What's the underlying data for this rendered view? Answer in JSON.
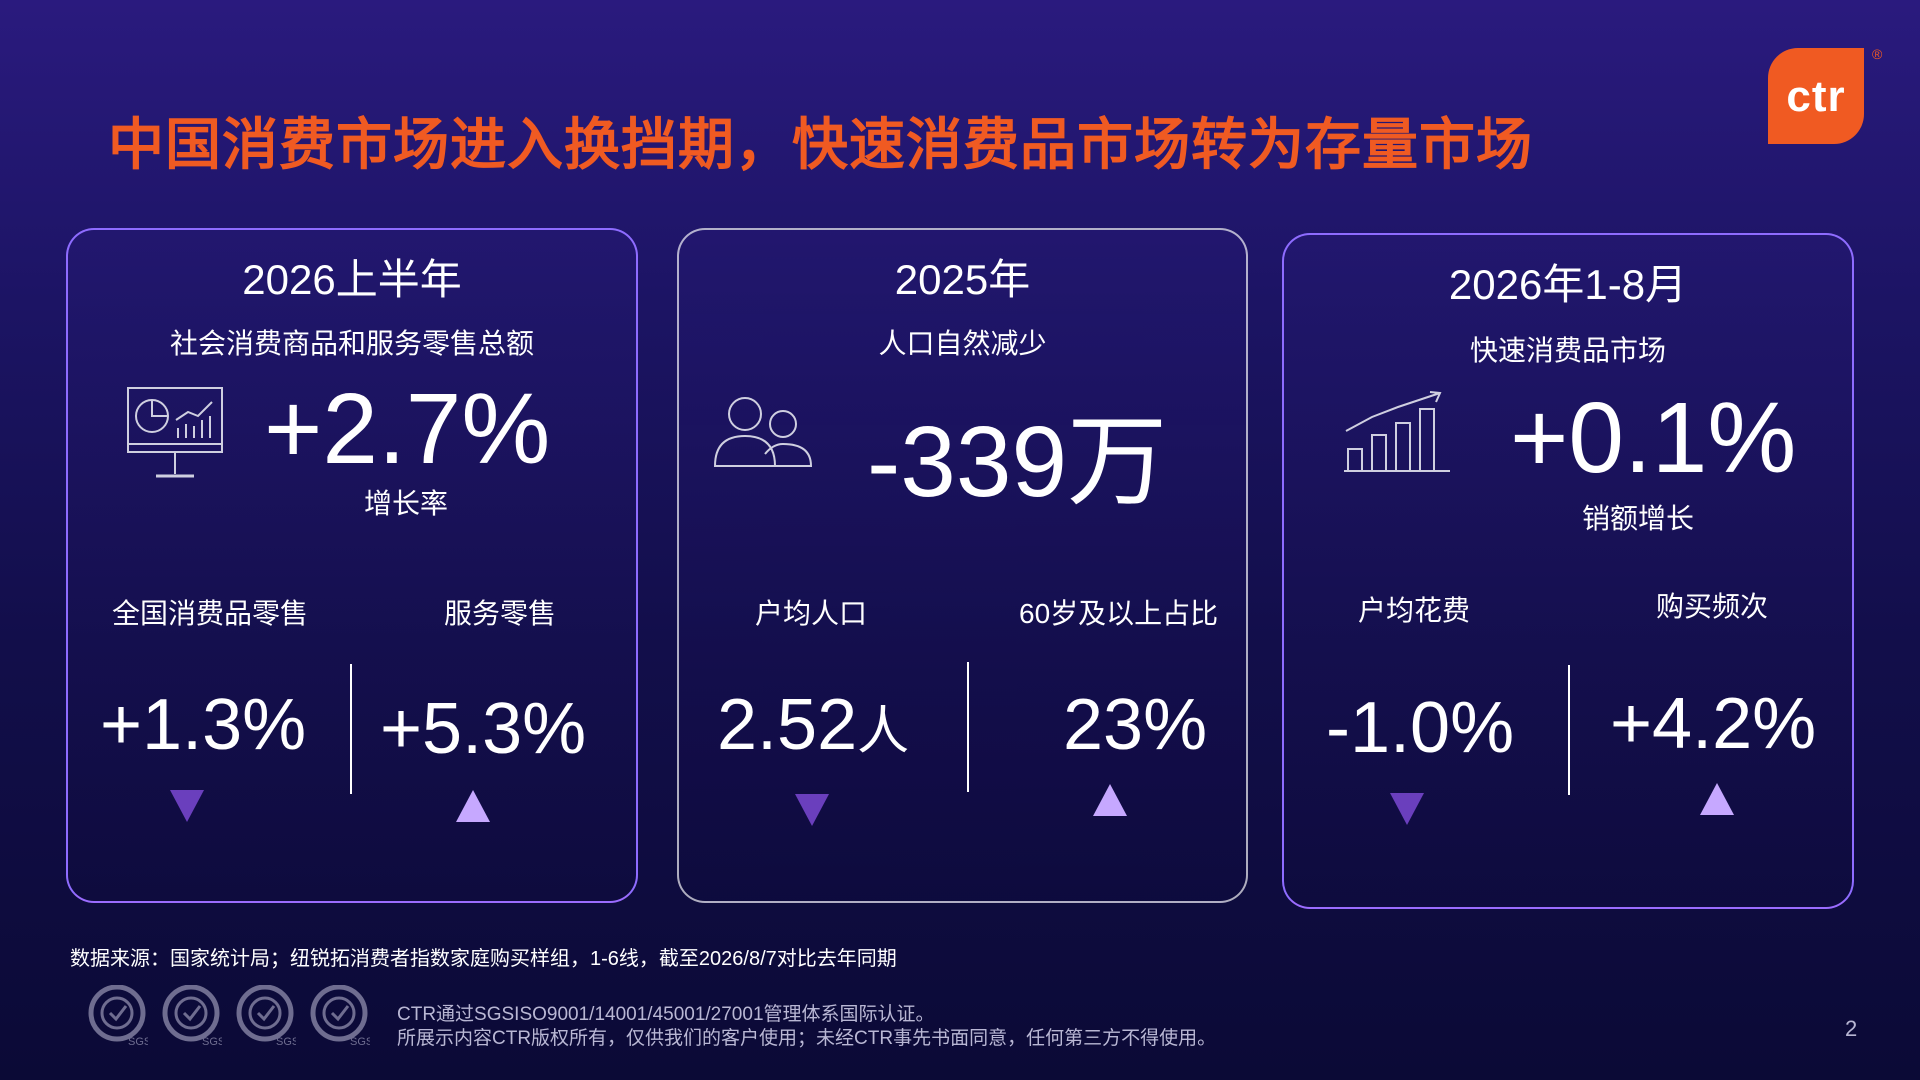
{
  "title": "中国消费市场进入换挡期，快速消费品市场转为存量市场",
  "logo": {
    "text": "ctr",
    "reg": "®"
  },
  "colors": {
    "accent": "#f05a22",
    "down_arrow": "#6a3fbd",
    "up_arrow": "#c6a8ff"
  },
  "cards": [
    {
      "period": "2026上半年",
      "subtitle": "社会消费商品和服务零售总额",
      "icon": "monitor-chart-icon",
      "big_value": "+2.7%",
      "big_label": "增长率",
      "left": {
        "label": "全国消费品零售",
        "value": "+1.3%",
        "trend": "down"
      },
      "right": {
        "label": "服务零售",
        "value": "+5.3%",
        "trend": "up"
      }
    },
    {
      "period": "2025年",
      "subtitle": "人口自然减少",
      "icon": "people-icon",
      "big_value": "-339",
      "big_unit": "万",
      "left": {
        "label": "户均人口",
        "value": "2.52",
        "unit": "人",
        "trend": "down"
      },
      "right": {
        "label": "60岁及以上占比",
        "value": "23%",
        "trend": "up"
      }
    },
    {
      "period": "2026年1-8月",
      "subtitle": "快速消费品市场",
      "icon": "growth-bar-chart-icon",
      "big_value": "+0.1%",
      "big_label": "销额增长",
      "left": {
        "label": "户均花费",
        "value": "-1.0%",
        "trend": "down"
      },
      "right": {
        "label": "购买频次",
        "value": "+4.2%",
        "trend": "up"
      }
    }
  ],
  "source": "数据来源：国家统计局；纽锐拓消费者指数家庭购买样组，1-6线，截至2026/8/7对比去年同期",
  "cert_label": "SGS",
  "disclaimer": [
    "CTR通过SGSISO9001/14001/45001/27001管理体系国际认证。",
    "所展示内容CTR版权所有，仅供我们的客户使用；未经CTR事先书面同意，任何第三方不得使用。"
  ],
  "page_number": "2"
}
